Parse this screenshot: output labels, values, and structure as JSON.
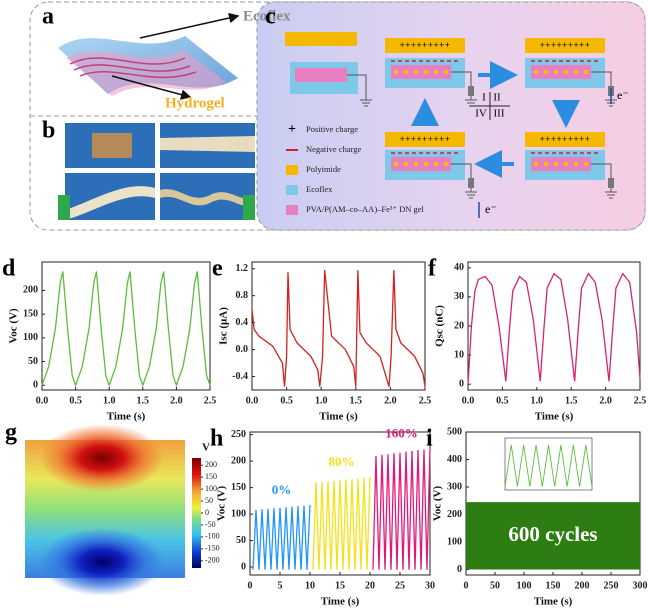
{
  "figure": {
    "a": {
      "panel": "a",
      "ecoflex": "Ecoflex",
      "hydrogel": "Hydrogel"
    },
    "b": {
      "panel": "b"
    },
    "c": {
      "panel": "c",
      "plus": "+++++++++",
      "roman": [
        "I",
        "II",
        "IV",
        "III"
      ],
      "electron": "e⁻",
      "plus_sign": "+",
      "legend": [
        {
          "text": "Positive charge"
        },
        {
          "text": "Negative charge",
          "color": "#d02030"
        },
        {
          "text": "Polyimide",
          "color": "#f5b800"
        },
        {
          "text": "Ecoflex",
          "color": "#7ec8ea"
        },
        {
          "text": "PVA/P(AM–co–AA)–Fe³⁺ DN gel",
          "color": "#e77fc0"
        }
      ]
    }
  },
  "chart_data": [
    {
      "type": "line",
      "panel": "d",
      "xlabel": "Time (s)",
      "ylabel": "Voc (V)",
      "xlim": [
        0,
        2.5
      ],
      "xticks": [
        {
          "value": 0,
          "label": "0.0"
        },
        0.5,
        {
          "value": 1,
          "label": "1.0"
        },
        1.5,
        {
          "value": 2,
          "label": "2.0"
        },
        2.5
      ],
      "ylim": [
        -10,
        260
      ],
      "yticks": [
        0,
        50,
        100,
        150,
        200
      ],
      "series": [
        {
          "color": "#5cbf3c",
          "x": [
            0,
            0.1,
            0.2,
            0.27,
            0.31,
            0.38,
            0.45,
            0.5,
            0.6,
            0.7,
            0.77,
            0.81,
            0.88,
            0.95,
            1.0,
            1.1,
            1.2,
            1.27,
            1.31,
            1.38,
            1.45,
            1.5,
            1.6,
            1.7,
            1.77,
            1.81,
            1.88,
            1.95,
            2.0,
            2.1,
            2.2,
            2.27,
            2.31,
            2.38,
            2.45,
            2.5
          ],
          "values": [
            0,
            40,
            120,
            215,
            240,
            120,
            20,
            0,
            40,
            120,
            215,
            240,
            120,
            20,
            0,
            40,
            120,
            215,
            240,
            120,
            20,
            0,
            40,
            120,
            215,
            240,
            120,
            20,
            0,
            40,
            120,
            215,
            240,
            120,
            20,
            0
          ]
        }
      ]
    },
    {
      "type": "line",
      "panel": "e",
      "xlabel": "Time (s)",
      "ylabel": "Isc (μA)",
      "xlim": [
        0,
        2.5
      ],
      "xticks": [
        {
          "value": 0,
          "label": "0.0"
        },
        0.5,
        {
          "value": 1,
          "label": "1.0"
        },
        1.5,
        {
          "value": 2,
          "label": "2.0"
        },
        2.5
      ],
      "ylim": [
        -0.6,
        1.3
      ],
      "yticks": [
        -0.4,
        {
          "value": 0,
          "label": "0.0"
        },
        0.4,
        0.8,
        1.2
      ],
      "series": [
        {
          "color": "#d62020",
          "x": [
            0,
            0.03,
            0.1,
            0.3,
            0.44,
            0.47,
            0.5,
            0.52,
            0.55,
            0.65,
            0.85,
            0.95,
            0.98,
            1.02,
            1.05,
            1.15,
            1.35,
            1.47,
            1.5,
            1.53,
            1.56,
            1.65,
            1.85,
            1.98,
            2.01,
            2.05,
            2.08,
            2.15,
            2.35,
            2.47,
            2.5
          ],
          "values": [
            0.6,
            0.3,
            0.2,
            0.05,
            -0.2,
            -0.55,
            -0.1,
            1.15,
            0.3,
            0.1,
            -0.1,
            -0.3,
            -0.55,
            -0.1,
            1.18,
            0.2,
            0.0,
            -0.25,
            -0.55,
            1.18,
            0.25,
            0.1,
            -0.1,
            -0.55,
            -0.1,
            1.18,
            0.3,
            0.1,
            -0.1,
            -0.35,
            -0.55
          ]
        }
      ]
    },
    {
      "type": "line",
      "panel": "f",
      "xlabel": "Time (s)",
      "ylabel": "Qsc (nC)",
      "xlim": [
        0,
        2.5
      ],
      "xticks": [
        {
          "value": 0,
          "label": "0.0"
        },
        0.5,
        {
          "value": 1,
          "label": "1.0"
        },
        1.5,
        {
          "value": 2,
          "label": "2.0"
        },
        2.5
      ],
      "ylim": [
        -2,
        42
      ],
      "yticks": [
        0,
        10,
        20,
        30,
        40
      ],
      "series": [
        {
          "color": "#d6246e",
          "x": [
            0,
            0.05,
            0.1,
            0.15,
            0.25,
            0.35,
            0.45,
            0.55,
            0.6,
            0.65,
            0.75,
            0.85,
            0.95,
            1.05,
            1.1,
            1.15,
            1.25,
            1.35,
            1.45,
            1.55,
            1.6,
            1.65,
            1.75,
            1.85,
            1.95,
            2.05,
            2.1,
            2.15,
            2.25,
            2.35,
            2.45,
            2.5
          ],
          "values": [
            0,
            20,
            32,
            36,
            37,
            34,
            20,
            1,
            18,
            32,
            37,
            35,
            22,
            1,
            18,
            33,
            38,
            36,
            22,
            1,
            18,
            33,
            38,
            35,
            22,
            1,
            18,
            33,
            38,
            35,
            18,
            2
          ]
        }
      ]
    },
    {
      "type": "heatmap",
      "panel": "g",
      "colorbar_label": "V",
      "clim": [
        -230,
        230
      ],
      "cticks": [
        200,
        150,
        100,
        50,
        0,
        -50,
        -100,
        -150,
        -200
      ]
    },
    {
      "type": "line",
      "panel": "h",
      "xlabel": "Time (s)",
      "ylabel": "Voc (V)",
      "xlim": [
        0,
        30
      ],
      "xticks": [
        0,
        5,
        10,
        15,
        20,
        25,
        30
      ],
      "ylim": [
        -15,
        255
      ],
      "yticks": [
        0,
        50,
        100,
        150,
        200,
        250
      ],
      "series": [
        {
          "name": "0%",
          "color": "#2196f3",
          "x": [
            0.5,
            1,
            1.5,
            2,
            2.5,
            3,
            3.5,
            4,
            4.5,
            5,
            5.5,
            6,
            6.5,
            7,
            7.5,
            8,
            8.5,
            9,
            9.5,
            10
          ],
          "values": [
            -5,
            108,
            -5,
            109,
            -5,
            110,
            -5,
            111,
            -5,
            112,
            -5,
            113,
            -5,
            114,
            -5,
            115,
            -5,
            116,
            -5,
            117
          ]
        },
        {
          "name": "80%",
          "color": "#f2e21a",
          "x": [
            10.5,
            11,
            11.5,
            12,
            12.5,
            13,
            13.5,
            14,
            14.5,
            15,
            15.5,
            16,
            16.5,
            17,
            17.5,
            18,
            18.5,
            19,
            19.5,
            20
          ],
          "values": [
            -5,
            160,
            -5,
            161,
            -5,
            162,
            -5,
            163,
            -5,
            164,
            -5,
            165,
            -5,
            166,
            -5,
            167,
            -5,
            168,
            -5,
            170
          ]
        },
        {
          "name": "160%",
          "color": "#e0187a",
          "x": [
            20.5,
            21,
            21.5,
            22,
            22.5,
            23,
            23.5,
            24,
            24.5,
            25,
            25.5,
            26,
            26.5,
            27,
            27.5,
            28,
            28.5,
            29,
            29.5,
            30
          ],
          "values": [
            -5,
            210,
            -5,
            212,
            -5,
            213,
            -5,
            215,
            -5,
            216,
            -5,
            218,
            -5,
            219,
            -5,
            221,
            -5,
            222,
            -5,
            224
          ]
        }
      ]
    },
    {
      "type": "line",
      "panel": "i",
      "xlabel": "Time (s)",
      "ylabel": "Voc (V)",
      "annotation": "600 cycles",
      "xlim": [
        0,
        300
      ],
      "xticks": [
        0,
        50,
        100,
        150,
        200,
        250,
        300
      ],
      "ylim": [
        -20,
        500
      ],
      "yticks": [
        0,
        100,
        200,
        300,
        400,
        500
      ],
      "series": [
        {
          "color": "#2e7d12",
          "x": [
            0,
            300
          ],
          "upper": [
            245,
            245
          ],
          "lower": [
            0,
            0
          ]
        }
      ],
      "inset": {
        "color": "#5cbf3c",
        "xlim": [
          0,
          14
        ],
        "ylim": [
          -20,
          280
        ],
        "x": [
          0,
          1,
          2,
          3,
          4,
          5,
          6,
          7,
          8,
          9,
          10,
          11,
          12,
          13,
          14
        ],
        "values": [
          0,
          240,
          0,
          240,
          0,
          240,
          0,
          240,
          0,
          240,
          0,
          240,
          0,
          240,
          0
        ]
      }
    }
  ]
}
